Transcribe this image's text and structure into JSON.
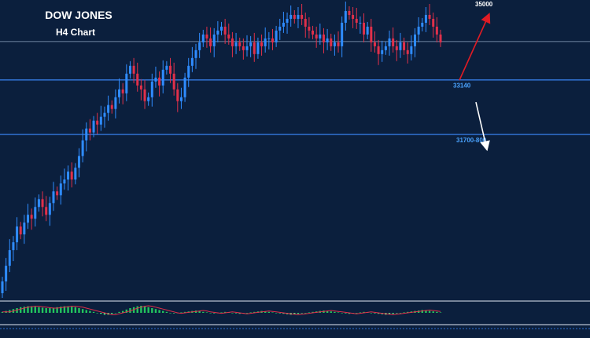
{
  "colors": {
    "background": "#0b1f3d",
    "bull": "#2f8cff",
    "bear": "#e0304a",
    "level_line": "#3d8bff",
    "current_price_line": "#8fa4bf",
    "level_label": "#4aa3ff",
    "title": "#ffffff",
    "up_arrow": "#e01b24",
    "down_arrow": "#ffffff",
    "osc_up": "#22c55e",
    "osc_down": "#4ade80",
    "osc_signal": "#e0304a"
  },
  "chart_data": {
    "type": "candlestick",
    "title": "DOW JONES",
    "subtitle": "H4 Chart",
    "ylim": [
      27600,
      35100
    ],
    "current_price": 34120,
    "levels": [
      {
        "label": "33140",
        "value": 33140
      },
      {
        "label": "31700-800",
        "value": 31750
      }
    ],
    "annotations": [
      {
        "label": "35000",
        "direction": "up",
        "color": "up_arrow"
      },
      {
        "label": "",
        "direction": "down",
        "color": "down_arrow"
      }
    ],
    "closes": [
      28000,
      28400,
      28800,
      29000,
      29400,
      29200,
      29500,
      29700,
      29600,
      29900,
      30100,
      29900,
      29700,
      30000,
      30300,
      30200,
      30500,
      30600,
      30800,
      30600,
      30900,
      31200,
      31600,
      31900,
      31800,
      32100,
      32000,
      32200,
      32300,
      32500,
      32400,
      32700,
      32900,
      32800,
      33300,
      33500,
      33300,
      33000,
      32900,
      32600,
      32700,
      33100,
      33200,
      33000,
      33400,
      33500,
      33300,
      32900,
      32600,
      32700,
      33200,
      33500,
      33700,
      33900,
      34100,
      34300,
      34200,
      34000,
      34300,
      34400,
      34500,
      34300,
      34200,
      34000,
      34100,
      34000,
      33900,
      34000,
      34100,
      33800,
      34100,
      34000,
      34200,
      34200,
      34100,
      34400,
      34500,
      34600,
      34700,
      34800,
      34700,
      34800,
      34700,
      34500,
      34400,
      34300,
      34200,
      34300,
      34100,
      34200,
      34000,
      34100,
      34000,
      34600,
      34900,
      34800,
      34700,
      34600,
      34600,
      34300,
      34500,
      34100,
      34000,
      33800,
      33900,
      34000,
      34200,
      34000,
      33900,
      34100,
      33900,
      33800,
      34000,
      34300,
      34500,
      34600,
      34800,
      34700,
      34500,
      34300,
      34100
    ],
    "oscillator": {
      "range": [
        -1,
        1
      ],
      "values": [
        0.1,
        0.2,
        0.3,
        0.4,
        0.5,
        0.6,
        0.65,
        0.7,
        0.7,
        0.65,
        0.6,
        0.55,
        0.5,
        0.5,
        0.55,
        0.6,
        0.65,
        0.7,
        0.7,
        0.65,
        0.6,
        0.5,
        0.4,
        0.3,
        0.2,
        0.1,
        0.0,
        -0.1,
        -0.2,
        -0.2,
        -0.1,
        0.0,
        0.1,
        0.2,
        0.35,
        0.5,
        0.6,
        0.7,
        0.75,
        0.7,
        0.6,
        0.5,
        0.4,
        0.3,
        0.2,
        0.1,
        0.0,
        -0.05,
        0.0,
        0.05,
        0.1,
        0.15,
        0.2,
        0.25,
        0.2,
        0.1,
        0.05,
        0.0,
        -0.05,
        0.0,
        0.05,
        0.1,
        0.05,
        0.0,
        -0.05,
        -0.1,
        -0.05,
        0.0,
        0.05,
        0.1,
        0.15,
        0.2,
        0.15,
        0.1,
        0.05,
        0.0,
        -0.05,
        -0.1,
        -0.15,
        -0.2,
        -0.15,
        -0.1,
        -0.05,
        0.0,
        0.05,
        0.1,
        0.15,
        0.2,
        0.25,
        0.2,
        0.15,
        0.1,
        0.05,
        0.0,
        -0.05,
        -0.1,
        -0.05,
        0.0,
        0.05,
        0.1,
        0.05,
        0.0,
        -0.05,
        -0.1,
        -0.15,
        -0.2,
        -0.15,
        -0.1,
        -0.05,
        0.0,
        0.05,
        0.1,
        0.15,
        0.2,
        0.25,
        0.3,
        0.25,
        0.2,
        0.15,
        0.1,
        0.05
      ]
    }
  }
}
